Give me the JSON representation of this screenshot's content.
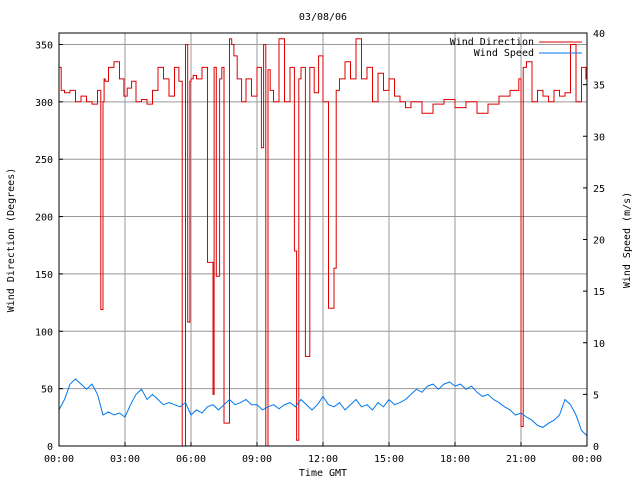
{
  "chart_data": {
    "type": "line",
    "title": "03/08/06",
    "xlabel": "Time GMT",
    "ylabel_left": "Wind Direction (Degrees)",
    "ylabel_right": "Wind Speed (m/s)",
    "x_ticks": [
      "00:00",
      "03:00",
      "06:00",
      "09:00",
      "12:00",
      "15:00",
      "18:00",
      "21:00",
      "00:00"
    ],
    "x_range_hours": [
      0,
      24
    ],
    "y_left_range": [
      0,
      360
    ],
    "y_left_ticks": [
      0,
      50,
      100,
      150,
      200,
      250,
      300,
      350
    ],
    "y_right_range": [
      0,
      40
    ],
    "y_right_ticks": [
      0,
      5,
      10,
      15,
      20,
      25,
      30,
      35,
      40
    ],
    "grid": true,
    "legend_position": "top-right",
    "colors": {
      "wind_direction": "#dd0000",
      "wind_speed": "#0077ee"
    },
    "series": [
      {
        "name": "Wind Direction",
        "axis": "left",
        "step": true,
        "x": [
          0,
          0.1,
          0.25,
          0.5,
          0.75,
          1,
          1.25,
          1.5,
          1.75,
          1.9,
          2,
          2.05,
          2.1,
          2.25,
          2.5,
          2.75,
          2.95,
          3.1,
          3.3,
          3.5,
          3.75,
          4,
          4.25,
          4.5,
          4.75,
          5,
          5.25,
          5.45,
          5.6,
          5.75,
          5.85,
          5.95,
          6.0,
          6.1,
          6.25,
          6.5,
          6.75,
          7.0,
          7.05,
          7.15,
          7.3,
          7.4,
          7.5,
          7.75,
          7.85,
          7.95,
          8.1,
          8.3,
          8.5,
          8.75,
          9.0,
          9.2,
          9.3,
          9.4,
          9.5,
          9.6,
          9.75,
          10.0,
          10.25,
          10.5,
          10.7,
          10.8,
          10.9,
          11.0,
          11.2,
          11.4,
          11.6,
          11.8,
          12.0,
          12.25,
          12.5,
          12.6,
          12.75,
          13.0,
          13.25,
          13.5,
          13.75,
          14.0,
          14.25,
          14.5,
          14.75,
          15.0,
          15.25,
          15.5,
          15.75,
          16.0,
          16.5,
          17.0,
          17.5,
          18.0,
          18.5,
          19.0,
          19.5,
          20.0,
          20.5,
          20.9,
          21.0,
          21.1,
          21.25,
          21.5,
          21.75,
          22.0,
          22.25,
          22.5,
          22.75,
          23.0,
          23.25,
          23.5,
          23.75,
          23.95
        ],
        "y": [
          330,
          310,
          308,
          310,
          300,
          305,
          300,
          298,
          310,
          119,
          300,
          320,
          318,
          330,
          335,
          320,
          305,
          312,
          318,
          300,
          302,
          298,
          310,
          330,
          320,
          305,
          330,
          318,
          0,
          350,
          108,
          318,
          320,
          323,
          320,
          330,
          160,
          45,
          330,
          148,
          320,
          330,
          20,
          355,
          350,
          340,
          320,
          300,
          320,
          305,
          330,
          260,
          350,
          0,
          328,
          310,
          300,
          355,
          300,
          330,
          170,
          5,
          320,
          330,
          78,
          330,
          308,
          340,
          300,
          120,
          155,
          310,
          320,
          335,
          320,
          355,
          320,
          330,
          300,
          325,
          310,
          320,
          305,
          300,
          295,
          300,
          290,
          298,
          302,
          295,
          300,
          290,
          298,
          305,
          310,
          320,
          17,
          330,
          335,
          300,
          310,
          305,
          300,
          310,
          305,
          308,
          350,
          300,
          330,
          320
        ],
        "note": "approx"
      },
      {
        "name": "Wind Speed",
        "axis": "right",
        "x": [
          0,
          0.25,
          0.5,
          0.75,
          1,
          1.25,
          1.5,
          1.75,
          2,
          2.25,
          2.5,
          2.75,
          3,
          3.25,
          3.5,
          3.75,
          4,
          4.25,
          4.5,
          4.75,
          5,
          5.25,
          5.5,
          5.75,
          6,
          6.25,
          6.5,
          6.75,
          7,
          7.25,
          7.5,
          7.75,
          8,
          8.25,
          8.5,
          8.75,
          9,
          9.25,
          9.5,
          9.75,
          10,
          10.25,
          10.5,
          10.75,
          11,
          11.25,
          11.5,
          11.75,
          12,
          12.25,
          12.5,
          12.75,
          13,
          13.25,
          13.5,
          13.75,
          14,
          14.25,
          14.5,
          14.75,
          15,
          15.25,
          15.5,
          15.75,
          16,
          16.25,
          16.5,
          16.75,
          17,
          17.25,
          17.5,
          17.75,
          18,
          18.25,
          18.5,
          18.75,
          19,
          19.25,
          19.5,
          19.75,
          20,
          20.25,
          20.5,
          20.75,
          21,
          21.25,
          21.5,
          21.75,
          22,
          22.25,
          22.5,
          22.75,
          23,
          23.25,
          23.5,
          23.75,
          24
        ],
        "y": [
          3.5,
          4.5,
          6.0,
          6.5,
          6.0,
          5.5,
          6.0,
          5.0,
          3.0,
          3.3,
          3.0,
          3.2,
          2.8,
          4.0,
          5.0,
          5.5,
          4.5,
          5.0,
          4.5,
          4.0,
          4.2,
          4.0,
          3.8,
          4.2,
          3.0,
          3.5,
          3.2,
          3.8,
          4.0,
          3.5,
          4.0,
          4.5,
          4.0,
          4.2,
          4.5,
          4.0,
          4.0,
          3.5,
          3.8,
          4.0,
          3.6,
          4.0,
          4.2,
          3.8,
          4.5,
          4.0,
          3.5,
          4.0,
          4.8,
          4.0,
          3.8,
          4.2,
          3.5,
          4.0,
          4.5,
          3.8,
          4.0,
          3.5,
          4.2,
          3.8,
          4.5,
          4.0,
          4.2,
          4.5,
          5.0,
          5.5,
          5.2,
          5.8,
          6.0,
          5.5,
          6.0,
          6.2,
          5.8,
          6.0,
          5.5,
          5.8,
          5.2,
          4.8,
          5.0,
          4.5,
          4.2,
          3.8,
          3.5,
          3.0,
          3.2,
          2.8,
          2.5,
          2.0,
          1.8,
          2.2,
          2.5,
          3.0,
          4.5,
          4.0,
          3.0,
          1.5,
          1.0
        ]
      }
    ]
  }
}
